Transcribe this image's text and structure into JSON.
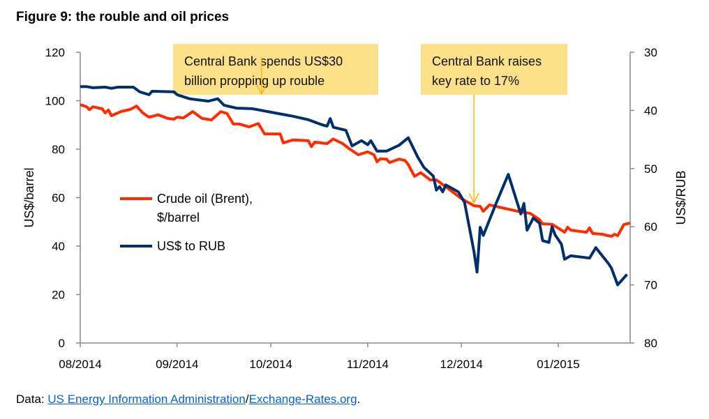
{
  "title": "Figure 9: the rouble and oil prices",
  "source": {
    "prefix": "Data: ",
    "link1": "US Energy Information Administration",
    "separator": "/",
    "link2": "Exchange-Rates.org",
    "suffix": "."
  },
  "colors": {
    "oil": "#ff2a00",
    "rub": "#002f6c",
    "annotation_bg": "#fbe08a",
    "arrow": "#f5b800",
    "axis": "#888888",
    "link": "#0b5fd0"
  },
  "chart_data": {
    "type": "line",
    "title": "Figure 9: the rouble and oil prices",
    "xlabel": "",
    "ylabel": "US$/barrel",
    "y2label": "US$/RUB",
    "xlim": [
      "2014-08-01",
      "2015-01-24"
    ],
    "ylim": [
      0,
      120
    ],
    "y2lim": [
      30,
      80
    ],
    "y2_inverted": true,
    "x_ticks": [
      "08/2014",
      "09/2014",
      "10/2014",
      "11/2014",
      "12/2014",
      "01/2015"
    ],
    "x_tick_dates": [
      "2014-08-01",
      "2014-09-01",
      "2014-10-01",
      "2014-11-01",
      "2014-12-01",
      "2015-01-01"
    ],
    "y_ticks": [
      0,
      20,
      40,
      60,
      80,
      100,
      120
    ],
    "y2_ticks": [
      30,
      40,
      50,
      60,
      70,
      80
    ],
    "grid": false,
    "legend_position": "center-left",
    "series": [
      {
        "name": "Crude oil (Brent), $/barrel",
        "axis": "left",
        "color": "#ff2a00",
        "x": [
          "2014-08-01",
          "2014-08-03",
          "2014-08-04",
          "2014-08-05",
          "2014-08-08",
          "2014-08-09",
          "2014-08-10",
          "2014-08-11",
          "2014-08-14",
          "2014-08-17",
          "2014-08-19",
          "2014-08-21",
          "2014-08-23",
          "2014-08-26",
          "2014-08-29",
          "2014-08-31",
          "2014-09-01",
          "2014-09-03",
          "2014-09-06",
          "2014-09-09",
          "2014-09-12",
          "2014-09-15",
          "2014-09-17",
          "2014-09-19",
          "2014-09-21",
          "2014-09-24",
          "2014-09-27",
          "2014-09-29",
          "2014-10-04",
          "2014-10-05",
          "2014-10-08",
          "2014-10-13",
          "2014-10-14",
          "2014-10-15",
          "2014-10-19",
          "2014-10-21",
          "2014-10-24",
          "2014-10-26",
          "2014-10-29",
          "2014-11-01",
          "2014-11-03",
          "2014-11-04",
          "2014-11-05",
          "2014-11-07",
          "2014-11-08",
          "2014-11-11",
          "2014-11-13",
          "2014-11-14",
          "2014-11-16",
          "2014-11-18",
          "2014-11-21",
          "2014-11-23",
          "2014-11-26",
          "2014-12-01",
          "2014-12-05",
          "2014-12-07",
          "2014-12-08",
          "2014-12-10",
          "2014-12-14",
          "2014-12-19",
          "2014-12-23",
          "2014-12-26",
          "2014-12-27",
          "2014-12-30",
          "2015-01-02",
          "2015-01-03",
          "2015-01-04",
          "2015-01-05",
          "2015-01-10",
          "2015-01-11",
          "2015-01-12",
          "2015-01-15",
          "2015-01-18",
          "2015-01-19",
          "2015-01-20",
          "2015-01-22",
          "2015-01-24"
        ],
        "values": [
          98.4,
          97.5,
          96.3,
          97.5,
          96.7,
          95.0,
          96.2,
          93.8,
          95.5,
          96.4,
          97.8,
          95.0,
          93.2,
          94.2,
          92.7,
          92.4,
          93.2,
          92.9,
          95.5,
          92.7,
          92.1,
          95.5,
          94.7,
          90.4,
          90.4,
          89.2,
          90.6,
          86.3,
          86.3,
          82.6,
          83.8,
          83.5,
          81.0,
          82.9,
          82.3,
          84.2,
          82.3,
          80.3,
          77.7,
          78.9,
          77.7,
          74.8,
          76.0,
          75.9,
          74.5,
          75.9,
          75.3,
          73.6,
          68.8,
          70.3,
          67.3,
          67.3,
          64.5,
          59.6,
          56.7,
          56.4,
          54.4,
          57.0,
          55.8,
          54.4,
          53.5,
          50.9,
          49.2,
          49.0,
          46.6,
          45.7,
          47.8,
          46.6,
          45.7,
          47.5,
          45.2,
          44.9,
          44.0,
          44.9,
          44.3,
          48.9,
          49.5
        ]
      },
      {
        "name": "US$ to RUB",
        "axis": "right",
        "color": "#002f6c",
        "x": [
          "2014-08-01",
          "2014-08-03",
          "2014-08-05",
          "2014-08-09",
          "2014-08-11",
          "2014-08-13",
          "2014-08-18",
          "2014-08-20",
          "2014-08-23",
          "2014-08-24",
          "2014-08-31",
          "2014-09-01",
          "2014-09-05",
          "2014-09-11",
          "2014-09-14",
          "2014-09-16",
          "2014-09-20",
          "2014-09-25",
          "2014-09-29",
          "2014-10-04",
          "2014-10-08",
          "2014-10-13",
          "2014-10-17",
          "2014-10-19",
          "2014-10-20",
          "2014-10-21",
          "2014-10-25",
          "2014-10-27",
          "2014-10-30",
          "2014-11-01",
          "2014-11-02",
          "2014-11-04",
          "2014-11-07",
          "2014-11-11",
          "2014-11-14",
          "2014-11-17",
          "2014-11-19",
          "2014-11-22",
          "2014-11-23",
          "2014-11-24",
          "2014-11-25",
          "2014-11-26",
          "2014-11-30",
          "2014-12-02",
          "2014-12-05",
          "2014-12-06",
          "2014-12-07",
          "2014-12-08",
          "2014-12-10",
          "2014-12-12",
          "2014-12-16",
          "2014-12-20",
          "2014-12-21",
          "2014-12-22",
          "2014-12-24",
          "2014-12-26",
          "2014-12-27",
          "2014-12-29",
          "2014-12-30",
          "2014-12-31",
          "2015-01-02",
          "2015-01-03",
          "2015-01-05",
          "2015-01-11",
          "2015-01-13",
          "2015-01-17",
          "2015-01-18",
          "2015-01-20",
          "2015-01-23"
        ],
        "values": [
          35.9,
          35.9,
          36.1,
          36.0,
          36.2,
          36.0,
          36.0,
          36.8,
          37.3,
          36.7,
          36.8,
          37.3,
          38.0,
          38.4,
          38.0,
          39.1,
          39.6,
          39.7,
          40.1,
          40.6,
          41.0,
          41.6,
          42.4,
          42.7,
          41.4,
          42.9,
          43.4,
          46.1,
          45.2,
          45.9,
          45.2,
          47.0,
          47.0,
          46.0,
          44.7,
          48.0,
          49.8,
          51.3,
          53.7,
          53.1,
          54.0,
          52.8,
          54.0,
          55.8,
          64.2,
          67.8,
          60.1,
          61.5,
          58.8,
          56.1,
          51.0,
          57.8,
          56.0,
          60.6,
          58.5,
          59.4,
          62.4,
          62.7,
          60.0,
          61.4,
          63.0,
          65.6,
          65.0,
          65.4,
          63.6,
          66.3,
          67.1,
          70.0,
          68.2
        ]
      }
    ],
    "legend": [
      "Crude oil (Brent),",
      "$/barrel",
      "US$ to RUB"
    ],
    "annotations": [
      {
        "lines": [
          "Central Bank spends US$30",
          "billion propping up rouble"
        ],
        "date": "2014-09-28"
      },
      {
        "lines": [
          "Central Bank raises",
          "key rate to 17%"
        ],
        "date": "2014-12-05"
      }
    ]
  }
}
